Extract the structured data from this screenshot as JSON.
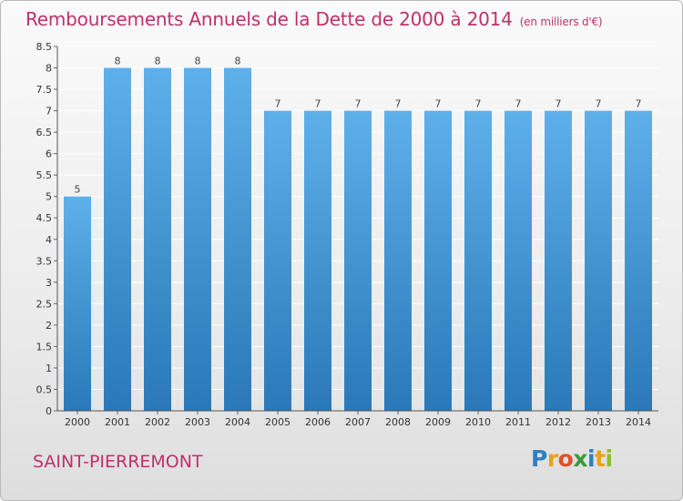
{
  "title": "Remboursements Annuels de la Dette de 2000 à 2014",
  "unit": "(en milliers d'€)",
  "commune": "SAINT-PIERREMONT",
  "logo_letters": [
    "P",
    "r",
    "o",
    "x",
    "i",
    "t",
    "i"
  ],
  "colors": {
    "title": "#c0306a",
    "bar_top": "#5eb0ea",
    "bar_bottom": "#2a78b8"
  },
  "chart_data": {
    "type": "bar",
    "title": "Remboursements Annuels de la Dette de 2000 à 2014",
    "xlabel": "",
    "ylabel": "",
    "ylim": [
      0,
      8.5
    ],
    "yticks": [
      0,
      0.5,
      1,
      1.5,
      2,
      2.5,
      3,
      3.5,
      4,
      4.5,
      5,
      5.5,
      6,
      6.5,
      7,
      7.5,
      8,
      8.5
    ],
    "ytick_labels": [
      "0",
      "0.5",
      "1",
      "1.5",
      "2",
      "2.5",
      "3",
      "3.5",
      "4",
      "4.5",
      "5",
      "5.5",
      "6",
      "6.5",
      "7",
      "7.5",
      "8",
      "8.5"
    ],
    "categories": [
      "2000",
      "2001",
      "2002",
      "2003",
      "2004",
      "2005",
      "2006",
      "2007",
      "2008",
      "2009",
      "2010",
      "2011",
      "2012",
      "2013",
      "2014"
    ],
    "values": [
      5,
      8,
      8,
      8,
      8,
      7,
      7,
      7,
      7,
      7,
      7,
      7,
      7,
      7,
      7
    ],
    "data_labels": [
      "5",
      "8",
      "8",
      "8",
      "8",
      "7",
      "7",
      "7",
      "7",
      "7",
      "7",
      "7",
      "7",
      "7",
      "7"
    ]
  }
}
